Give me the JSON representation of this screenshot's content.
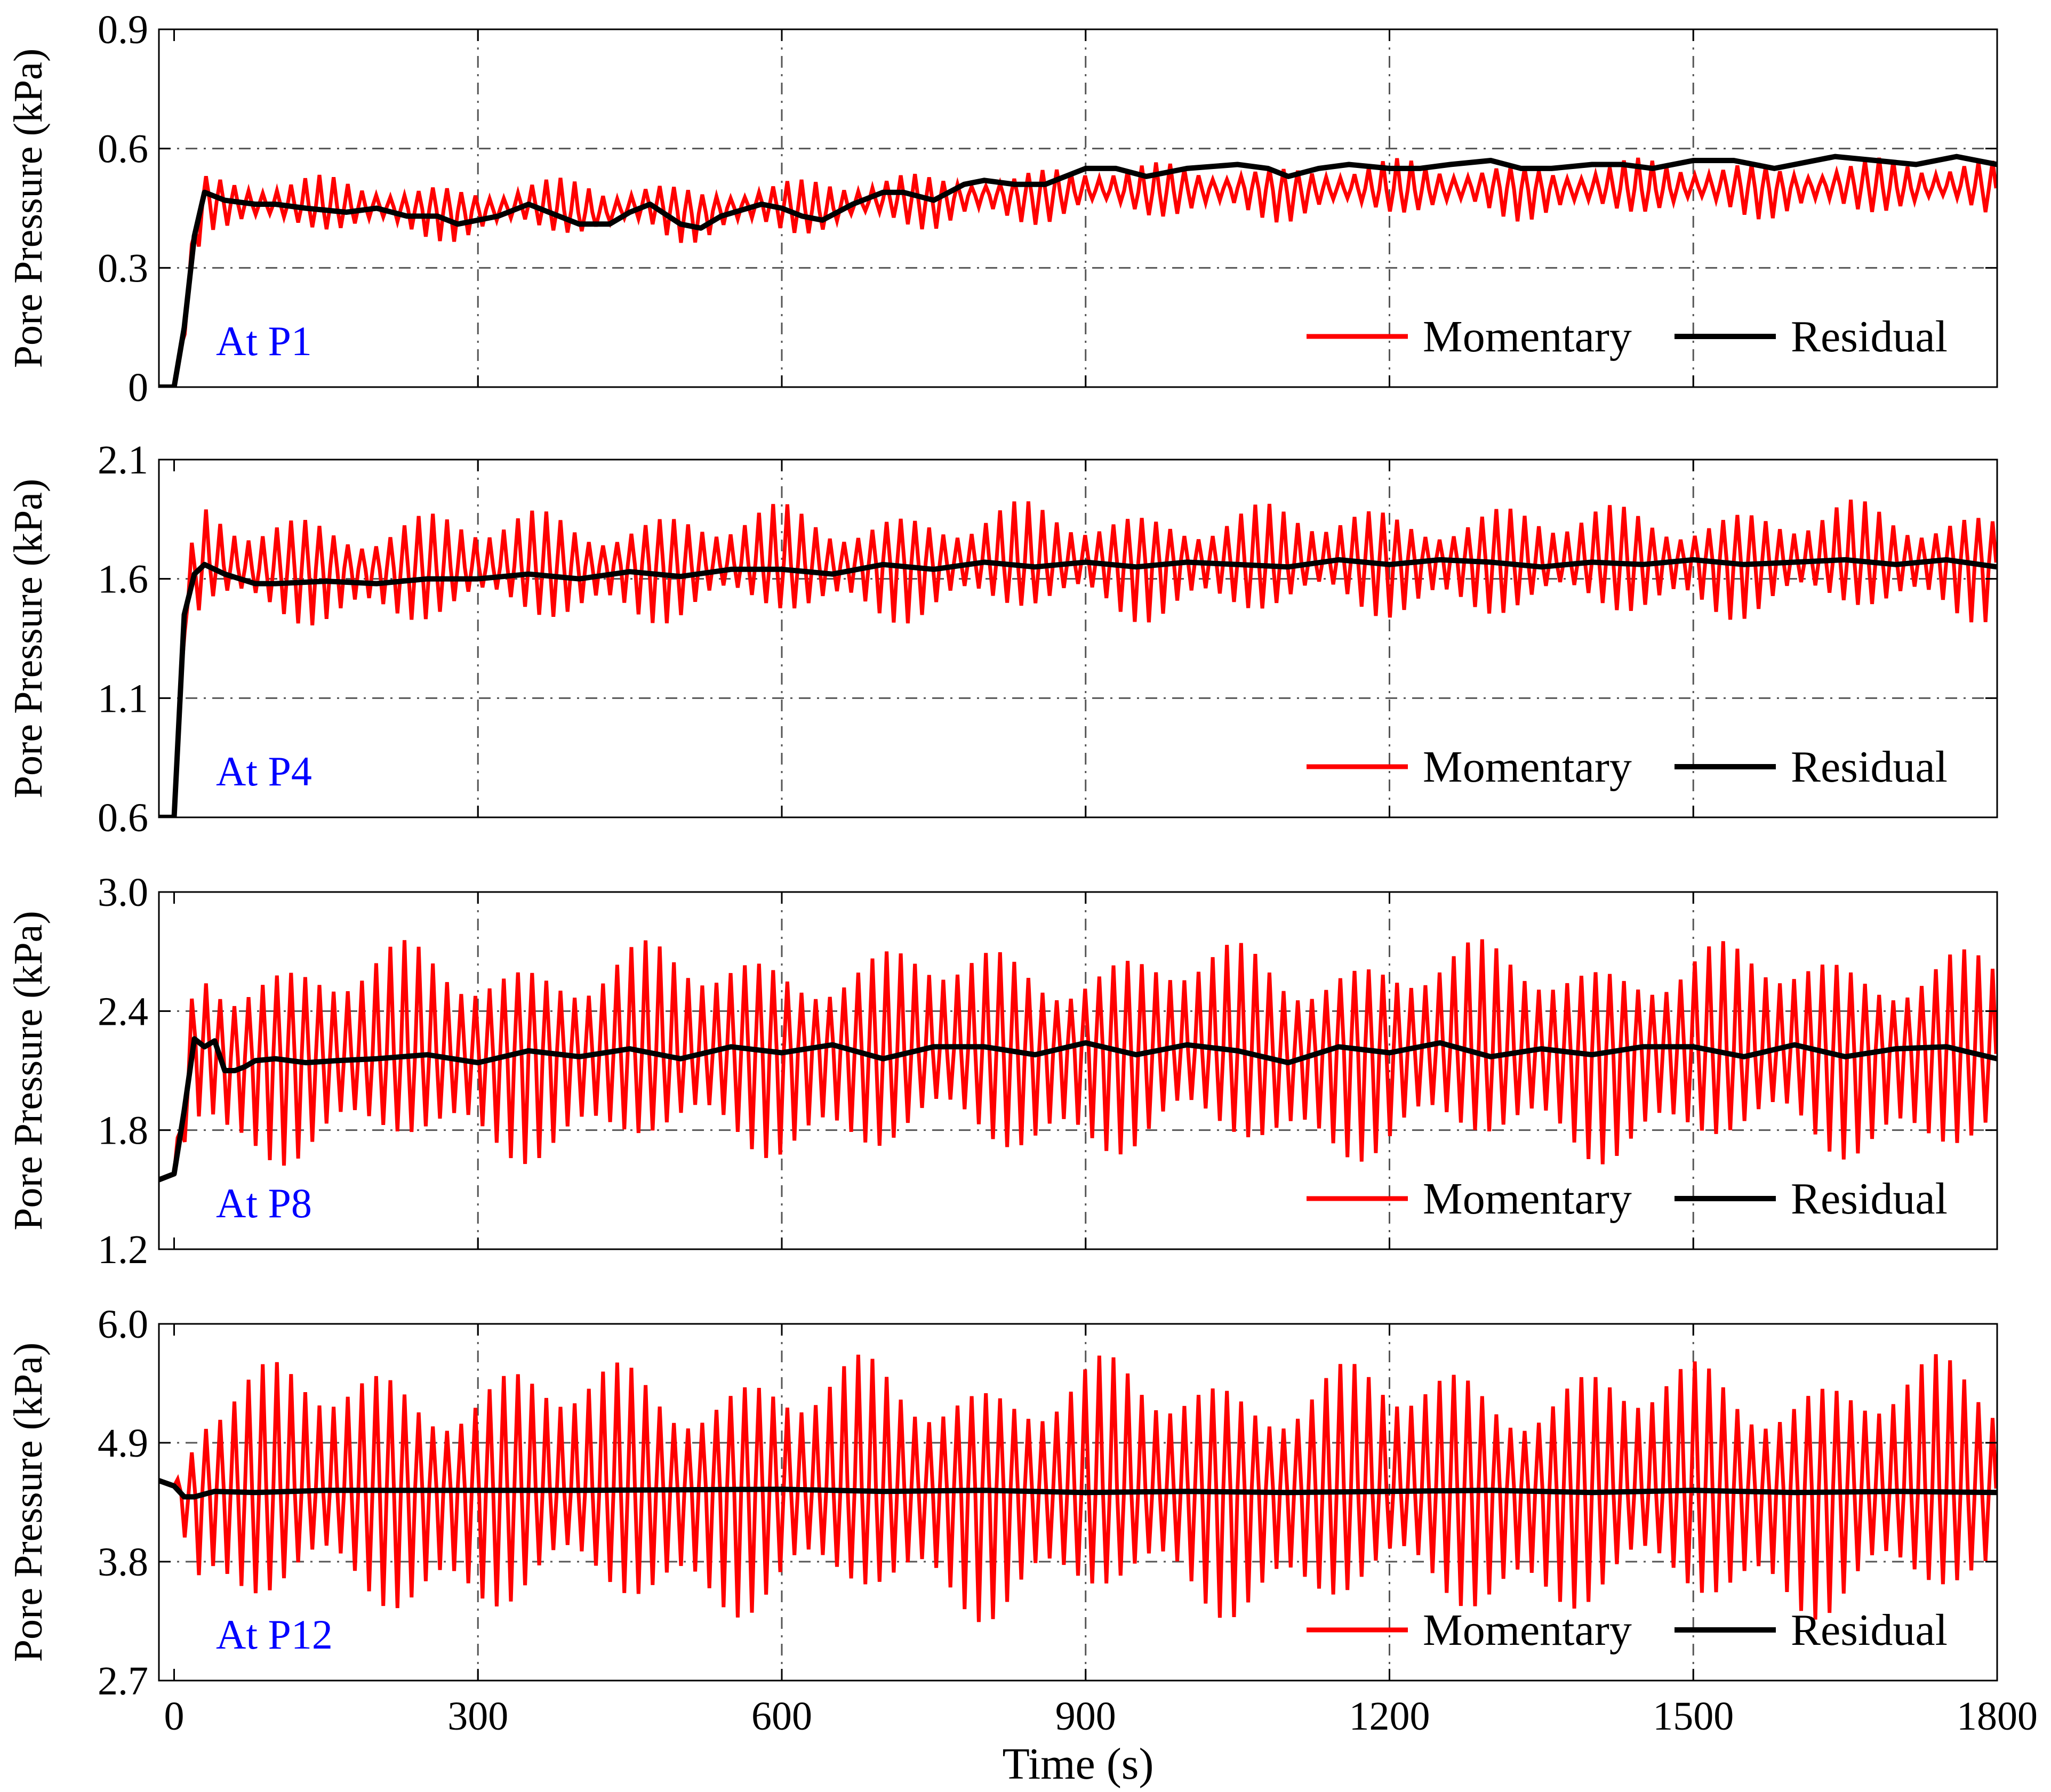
{
  "colors": {
    "momentary": "#ff0000",
    "residual": "#000000",
    "annotation": "#0000ff",
    "grid": "#555555"
  },
  "x_axis": {
    "label": "Time (s)",
    "ticks": [
      0,
      300,
      600,
      900,
      1200,
      1500,
      1800
    ],
    "tick_labels": [
      "0",
      "300",
      "600",
      "900",
      "1200",
      "1500",
      "1800"
    ],
    "range": [
      -15,
      1800
    ]
  },
  "chart_data": [
    {
      "type": "line",
      "panel": "At P1",
      "ylabel": "Pore Pressure (kPa)",
      "ylim": [
        0,
        0.9
      ],
      "yticks": [
        0,
        0.3,
        0.6,
        0.9
      ],
      "ytick_labels": [
        "0",
        "0.3",
        "0.6",
        "0.9"
      ],
      "grid": true,
      "legend": "bottom-right",
      "series": [
        {
          "name": "Momentary",
          "color": "#ff0000",
          "center": 0.46,
          "half_amplitude_range": [
            0.03,
            0.08
          ],
          "note": "oscillating signal, ~14 s period, envelope modulated ~120 s"
        },
        {
          "name": "Residual",
          "color": "#000000",
          "x": [
            -15,
            0,
            10,
            20,
            30,
            50,
            80,
            100,
            130,
            170,
            200,
            230,
            260,
            280,
            300,
            320,
            350,
            370,
            400,
            430,
            450,
            470,
            500,
            520,
            540,
            580,
            600,
            620,
            640,
            670,
            700,
            720,
            750,
            780,
            800,
            830,
            860,
            900,
            930,
            960,
            1000,
            1050,
            1080,
            1100,
            1130,
            1160,
            1200,
            1230,
            1260,
            1300,
            1330,
            1360,
            1400,
            1430,
            1460,
            1500,
            1540,
            1580,
            1600,
            1640,
            1680,
            1720,
            1760,
            1800
          ],
          "values": [
            0,
            0,
            0.15,
            0.38,
            0.49,
            0.47,
            0.46,
            0.46,
            0.45,
            0.44,
            0.45,
            0.43,
            0.43,
            0.41,
            0.42,
            0.43,
            0.46,
            0.44,
            0.41,
            0.41,
            0.44,
            0.46,
            0.41,
            0.4,
            0.43,
            0.46,
            0.45,
            0.43,
            0.42,
            0.46,
            0.49,
            0.49,
            0.47,
            0.51,
            0.52,
            0.51,
            0.51,
            0.55,
            0.55,
            0.53,
            0.55,
            0.56,
            0.55,
            0.53,
            0.55,
            0.56,
            0.55,
            0.55,
            0.56,
            0.57,
            0.55,
            0.55,
            0.56,
            0.56,
            0.55,
            0.57,
            0.57,
            0.55,
            0.56,
            0.58,
            0.57,
            0.56,
            0.58,
            0.56
          ]
        }
      ]
    },
    {
      "type": "line",
      "panel": "At P4",
      "ylabel": "Pore Pressure (kPa)",
      "ylim": [
        0.6,
        2.1
      ],
      "yticks": [
        0.6,
        1.1,
        1.6,
        2.1
      ],
      "ytick_labels": [
        "0.6",
        "1.1",
        "1.6",
        "2.1"
      ],
      "grid": true,
      "legend": "bottom-right",
      "series": [
        {
          "name": "Momentary",
          "color": "#ff0000",
          "center": 1.68,
          "half_amplitude_range": [
            0.12,
            0.26
          ],
          "note": "oscillating signal, ~14 s period, envelope modulated ~120 s"
        },
        {
          "name": "Residual",
          "color": "#000000",
          "x": [
            -15,
            0,
            10,
            20,
            30,
            50,
            80,
            100,
            150,
            200,
            250,
            300,
            350,
            400,
            450,
            500,
            550,
            600,
            650,
            700,
            750,
            800,
            850,
            900,
            950,
            1000,
            1050,
            1100,
            1150,
            1200,
            1250,
            1300,
            1350,
            1400,
            1450,
            1500,
            1550,
            1600,
            1650,
            1700,
            1750,
            1800
          ],
          "values": [
            0.6,
            0.6,
            1.45,
            1.62,
            1.66,
            1.62,
            1.58,
            1.58,
            1.59,
            1.58,
            1.6,
            1.6,
            1.62,
            1.6,
            1.63,
            1.61,
            1.64,
            1.64,
            1.62,
            1.66,
            1.64,
            1.67,
            1.65,
            1.67,
            1.65,
            1.67,
            1.66,
            1.65,
            1.68,
            1.66,
            1.68,
            1.67,
            1.65,
            1.67,
            1.66,
            1.68,
            1.66,
            1.67,
            1.68,
            1.66,
            1.68,
            1.65
          ]
        }
      ]
    },
    {
      "type": "line",
      "panel": "At P8",
      "ylabel": "Pore Pressure (kPa)",
      "ylim": [
        1.2,
        3.0
      ],
      "yticks": [
        1.2,
        1.8,
        2.4,
        3.0
      ],
      "ytick_labels": [
        "1.2",
        "1.8",
        "2.4",
        "3.0"
      ],
      "grid": true,
      "legend": "bottom-right",
      "series": [
        {
          "name": "Momentary",
          "color": "#ff0000",
          "center": 2.2,
          "half_amplitude_range": [
            0.35,
            0.57
          ],
          "note": "oscillating signal, ~14 s period, envelope modulated ~120 s"
        },
        {
          "name": "Residual",
          "color": "#000000",
          "x": [
            -15,
            0,
            10,
            20,
            30,
            40,
            50,
            60,
            70,
            80,
            100,
            130,
            160,
            200,
            250,
            300,
            350,
            400,
            450,
            500,
            550,
            600,
            650,
            700,
            750,
            800,
            850,
            900,
            950,
            1000,
            1050,
            1100,
            1150,
            1200,
            1250,
            1300,
            1350,
            1400,
            1450,
            1500,
            1550,
            1600,
            1650,
            1700,
            1750,
            1800
          ],
          "values": [
            1.55,
            1.58,
            1.9,
            2.26,
            2.22,
            2.25,
            2.1,
            2.1,
            2.12,
            2.15,
            2.16,
            2.14,
            2.15,
            2.16,
            2.18,
            2.14,
            2.2,
            2.17,
            2.21,
            2.16,
            2.22,
            2.19,
            2.23,
            2.16,
            2.22,
            2.22,
            2.18,
            2.24,
            2.18,
            2.23,
            2.2,
            2.14,
            2.22,
            2.19,
            2.24,
            2.17,
            2.21,
            2.18,
            2.22,
            2.22,
            2.17,
            2.23,
            2.17,
            2.21,
            2.22,
            2.16
          ]
        }
      ]
    },
    {
      "type": "line",
      "panel": "At P12",
      "ylabel": "Pore Pressure (kPa)",
      "ylim": [
        2.7,
        6.0
      ],
      "yticks": [
        2.7,
        3.8,
        4.9,
        6.0
      ],
      "ytick_labels": [
        "2.7",
        "3.8",
        "4.9",
        "6.0"
      ],
      "grid": true,
      "legend": "bottom-right",
      "series": [
        {
          "name": "Momentary",
          "color": "#ff0000",
          "center": 4.5,
          "half_amplitude_range": [
            0.75,
            1.25
          ],
          "note": "oscillating signal, ~14 s period, envelope modulated ~120 s"
        },
        {
          "name": "Residual",
          "color": "#000000",
          "x": [
            -15,
            0,
            10,
            20,
            40,
            80,
            150,
            300,
            400,
            600,
            700,
            800,
            900,
            1000,
            1100,
            1200,
            1300,
            1400,
            1500,
            1600,
            1700,
            1800
          ],
          "values": [
            4.55,
            4.5,
            4.4,
            4.4,
            4.45,
            4.44,
            4.46,
            4.46,
            4.46,
            4.47,
            4.45,
            4.46,
            4.44,
            4.45,
            4.44,
            4.45,
            4.46,
            4.44,
            4.46,
            4.44,
            4.45,
            4.44
          ]
        }
      ]
    }
  ]
}
